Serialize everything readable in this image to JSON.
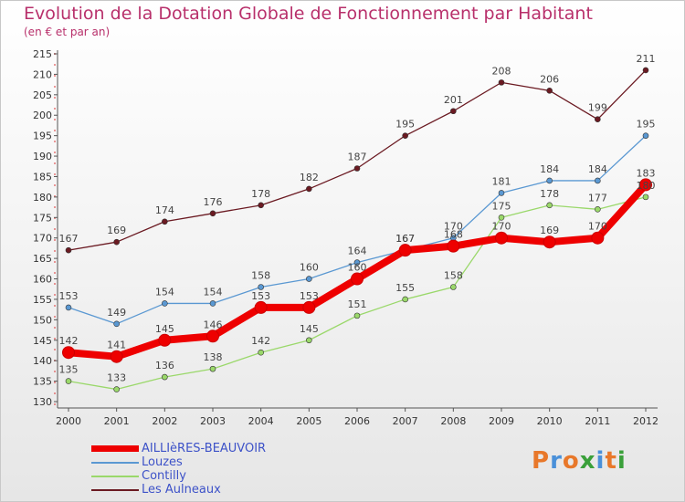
{
  "title": "Evolution de la Dotation Globale de Fonctionnement par Habitant",
  "subtitle": "(en € et par an)",
  "logo": {
    "text": [
      "P",
      "r",
      "o",
      "x",
      "i",
      "t",
      "i"
    ],
    "colors": [
      "#e8782a",
      "#4a90d9",
      "#e8782a",
      "#3aa03a",
      "#4a90d9",
      "#e8782a",
      "#3aa03a"
    ]
  },
  "chart_data": {
    "type": "line",
    "title": "Evolution de la Dotation Globale de Fonctionnement par Habitant",
    "subtitle": "(en € et par an)",
    "xlabel": "",
    "ylabel": "",
    "ylim": [
      130,
      215
    ],
    "ytick_step": 5,
    "x": [
      "2000",
      "2001",
      "2002",
      "2003",
      "2004",
      "2005",
      "2006",
      "2007",
      "2008",
      "2009",
      "2010",
      "2011",
      "2012"
    ],
    "grid": false,
    "legend_position": "bottom-left",
    "series": [
      {
        "name": "Les Aulneaux",
        "color": "#6b1a22",
        "values": [
          167,
          169,
          174,
          176,
          178,
          182,
          187,
          195,
          201,
          208,
          206,
          199,
          211
        ]
      },
      {
        "name": "Louzes",
        "color": "#5a98d2",
        "values": [
          153,
          149,
          154,
          154,
          158,
          160,
          164,
          167,
          170,
          181,
          184,
          184,
          195
        ]
      },
      {
        "name": "Contilly",
        "color": "#9ad86a",
        "values": [
          135,
          133,
          136,
          138,
          142,
          145,
          151,
          155,
          158,
          175,
          178,
          177,
          180
        ]
      },
      {
        "name": "AILLIèRES-BEAUVOIR",
        "color": "#ee0000",
        "values": [
          142,
          141,
          145,
          146,
          153,
          153,
          160,
          167,
          168,
          170,
          169,
          170,
          183
        ]
      }
    ],
    "legend": [
      "AILLIèRES-BEAUVOIR",
      "Louzes",
      "Contilly",
      "Les Aulneaux"
    ]
  }
}
